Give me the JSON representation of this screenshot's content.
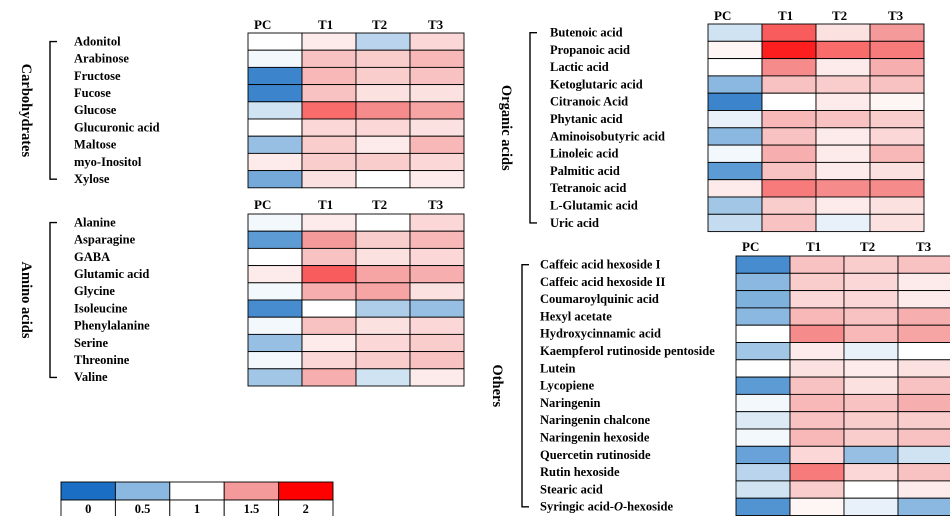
{
  "chart_data": [
    {
      "type": "heatmap",
      "group_label": "Carbohydrates",
      "columns": [
        "PC",
        "T1",
        "T2",
        "T3"
      ],
      "rows": [
        "Adonitol",
        "Arabinose",
        "Fructose",
        "Fucose",
        "Glucose",
        "Glucuronic acid",
        "Maltose",
        "myo-Inositol",
        "Xylose"
      ],
      "values": [
        [
          1.0,
          1.1,
          0.7,
          1.2
        ],
        [
          0.95,
          1.3,
          1.25,
          1.35
        ],
        [
          0.15,
          1.35,
          1.25,
          1.3
        ],
        [
          0.15,
          1.3,
          1.15,
          1.15
        ],
        [
          0.8,
          1.65,
          1.55,
          1.45
        ],
        [
          1.0,
          1.2,
          1.2,
          1.15
        ],
        [
          0.55,
          1.25,
          1.1,
          1.35
        ],
        [
          1.1,
          1.25,
          1.25,
          1.2
        ],
        [
          0.4,
          1.15,
          1.0,
          1.1
        ]
      ]
    },
    {
      "type": "heatmap",
      "group_label": "Amino acids",
      "columns": [
        "PC",
        "T1",
        "T2",
        "T3"
      ],
      "rows": [
        "Alanine",
        "Asparagine",
        "GABA",
        "Glutamic acid",
        "Glycine",
        "Isoleucine",
        "Phenylalanine",
        "Serine",
        "Threonine",
        "Valine"
      ],
      "values": [
        [
          0.95,
          1.1,
          1.0,
          1.2
        ],
        [
          0.3,
          1.5,
          1.25,
          1.35
        ],
        [
          1.0,
          1.3,
          1.15,
          1.2
        ],
        [
          1.1,
          1.7,
          1.45,
          1.4
        ],
        [
          0.95,
          1.4,
          1.45,
          1.15
        ],
        [
          0.2,
          1.0,
          0.65,
          0.55
        ],
        [
          0.95,
          1.3,
          1.15,
          1.2
        ],
        [
          0.55,
          1.1,
          1.2,
          1.25
        ],
        [
          0.95,
          1.2,
          1.25,
          1.3
        ],
        [
          0.6,
          1.4,
          0.8,
          1.1
        ]
      ]
    },
    {
      "type": "heatmap",
      "group_label": "Organic acids",
      "columns": [
        "PC",
        "T1",
        "T2",
        "T3"
      ],
      "rows": [
        "Butenoic acid",
        "Propanoic acid",
        "Lactic acid",
        "Ketoglutaric acid",
        "Citranoic Acid",
        "Phytanic acid",
        "Aminoisobutyric acid",
        "Linoleic acid",
        "Palmitic acid",
        "Tetranoic acid",
        "L-Glutamic acid",
        "Uric acid"
      ],
      "values": [
        [
          0.8,
          1.7,
          1.15,
          1.5
        ],
        [
          1.05,
          1.9,
          1.65,
          1.6
        ],
        [
          1.0,
          1.55,
          1.1,
          1.4
        ],
        [
          0.5,
          1.3,
          1.25,
          1.3
        ],
        [
          0.15,
          1.0,
          1.1,
          1.05
        ],
        [
          0.9,
          1.35,
          1.3,
          1.25
        ],
        [
          0.5,
          1.3,
          1.1,
          1.2
        ],
        [
          0.95,
          1.4,
          1.1,
          1.35
        ],
        [
          0.3,
          1.3,
          1.1,
          1.15
        ],
        [
          1.1,
          1.6,
          1.55,
          1.55
        ],
        [
          0.6,
          1.25,
          1.1,
          1.15
        ],
        [
          0.75,
          1.3,
          0.9,
          1.15
        ]
      ]
    },
    {
      "type": "heatmap",
      "group_label": "Others",
      "columns": [
        "PC",
        "T1",
        "T2",
        "T3"
      ],
      "rows": [
        "Caffeic acid hexoside I",
        "Caffeic acid hexoside II",
        "Coumaroylquinic acid",
        "Hexyl acetate",
        "Hydroxycinnamic acid",
        "Kaempferol rutinoside pentoside",
        "Lutein",
        "Lycopiene",
        "Naringenin",
        "Naringenin chalcone",
        "Naringenin hexoside",
        "Quercetin rutinoside",
        "Rutin hexoside",
        "Stearic acid",
        "Syringic acid-O-hexoside"
      ],
      "values": [
        [
          0.2,
          1.3,
          1.25,
          1.3
        ],
        [
          0.5,
          1.25,
          1.2,
          1.1
        ],
        [
          0.45,
          1.2,
          1.2,
          1.1
        ],
        [
          0.5,
          1.35,
          1.3,
          1.4
        ],
        [
          1.0,
          1.55,
          1.35,
          1.45
        ],
        [
          0.6,
          1.1,
          0.9,
          1.0
        ],
        [
          1.0,
          1.15,
          1.1,
          1.15
        ],
        [
          0.3,
          1.3,
          1.15,
          1.3
        ],
        [
          0.95,
          1.35,
          1.3,
          1.4
        ],
        [
          0.85,
          1.3,
          1.25,
          1.25
        ],
        [
          0.95,
          1.35,
          1.25,
          1.3
        ],
        [
          0.35,
          1.2,
          0.55,
          0.8
        ],
        [
          0.7,
          1.6,
          1.2,
          1.3
        ],
        [
          0.8,
          1.25,
          1.0,
          1.1
        ],
        [
          0.25,
          1.05,
          0.9,
          0.5
        ]
      ]
    }
  ],
  "legend": {
    "ticks": [
      "0",
      "0.5",
      "1",
      "1.5",
      "2"
    ],
    "stops": [
      0,
      0.5,
      1,
      1.5,
      2
    ],
    "colors": [
      "#1a6fc4",
      "#8ab8e0",
      "#ffffff",
      "#f59a9a",
      "#ff0000"
    ]
  }
}
